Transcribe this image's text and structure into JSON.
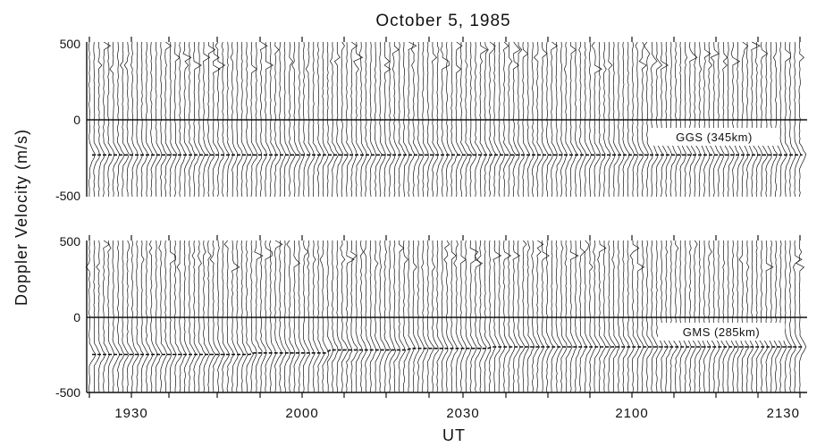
{
  "chart_data": {
    "type": "line",
    "title": "October 5, 1985",
    "xlabel": "UT",
    "ylabel": "Doppler Velocity (m/s)",
    "x_tick_labels": [
      "1930",
      "2000",
      "2030",
      "2100",
      "2130"
    ],
    "grid": false,
    "panels": [
      {
        "label": "GGS (345km)",
        "ylim": [
          -500,
          500
        ],
        "y_tick_labels": [
          "500",
          "0",
          "-500"
        ],
        "series_description": "stacked Doppler velocity spectra, one trace per time step",
        "mean_velocity_ms": [
          -230,
          -230,
          -230,
          -230,
          -230,
          -230,
          -230,
          -230,
          -230
        ]
      },
      {
        "label": "GMS (285km)",
        "ylim": [
          -500,
          500
        ],
        "y_tick_labels": [
          "500",
          "0",
          "-500"
        ],
        "series_description": "stacked Doppler velocity spectra, one trace per time step",
        "mean_velocity_ms": [
          -250,
          -250,
          -240,
          -220,
          -210,
          -200,
          -200,
          -200,
          -200
        ]
      }
    ]
  }
}
